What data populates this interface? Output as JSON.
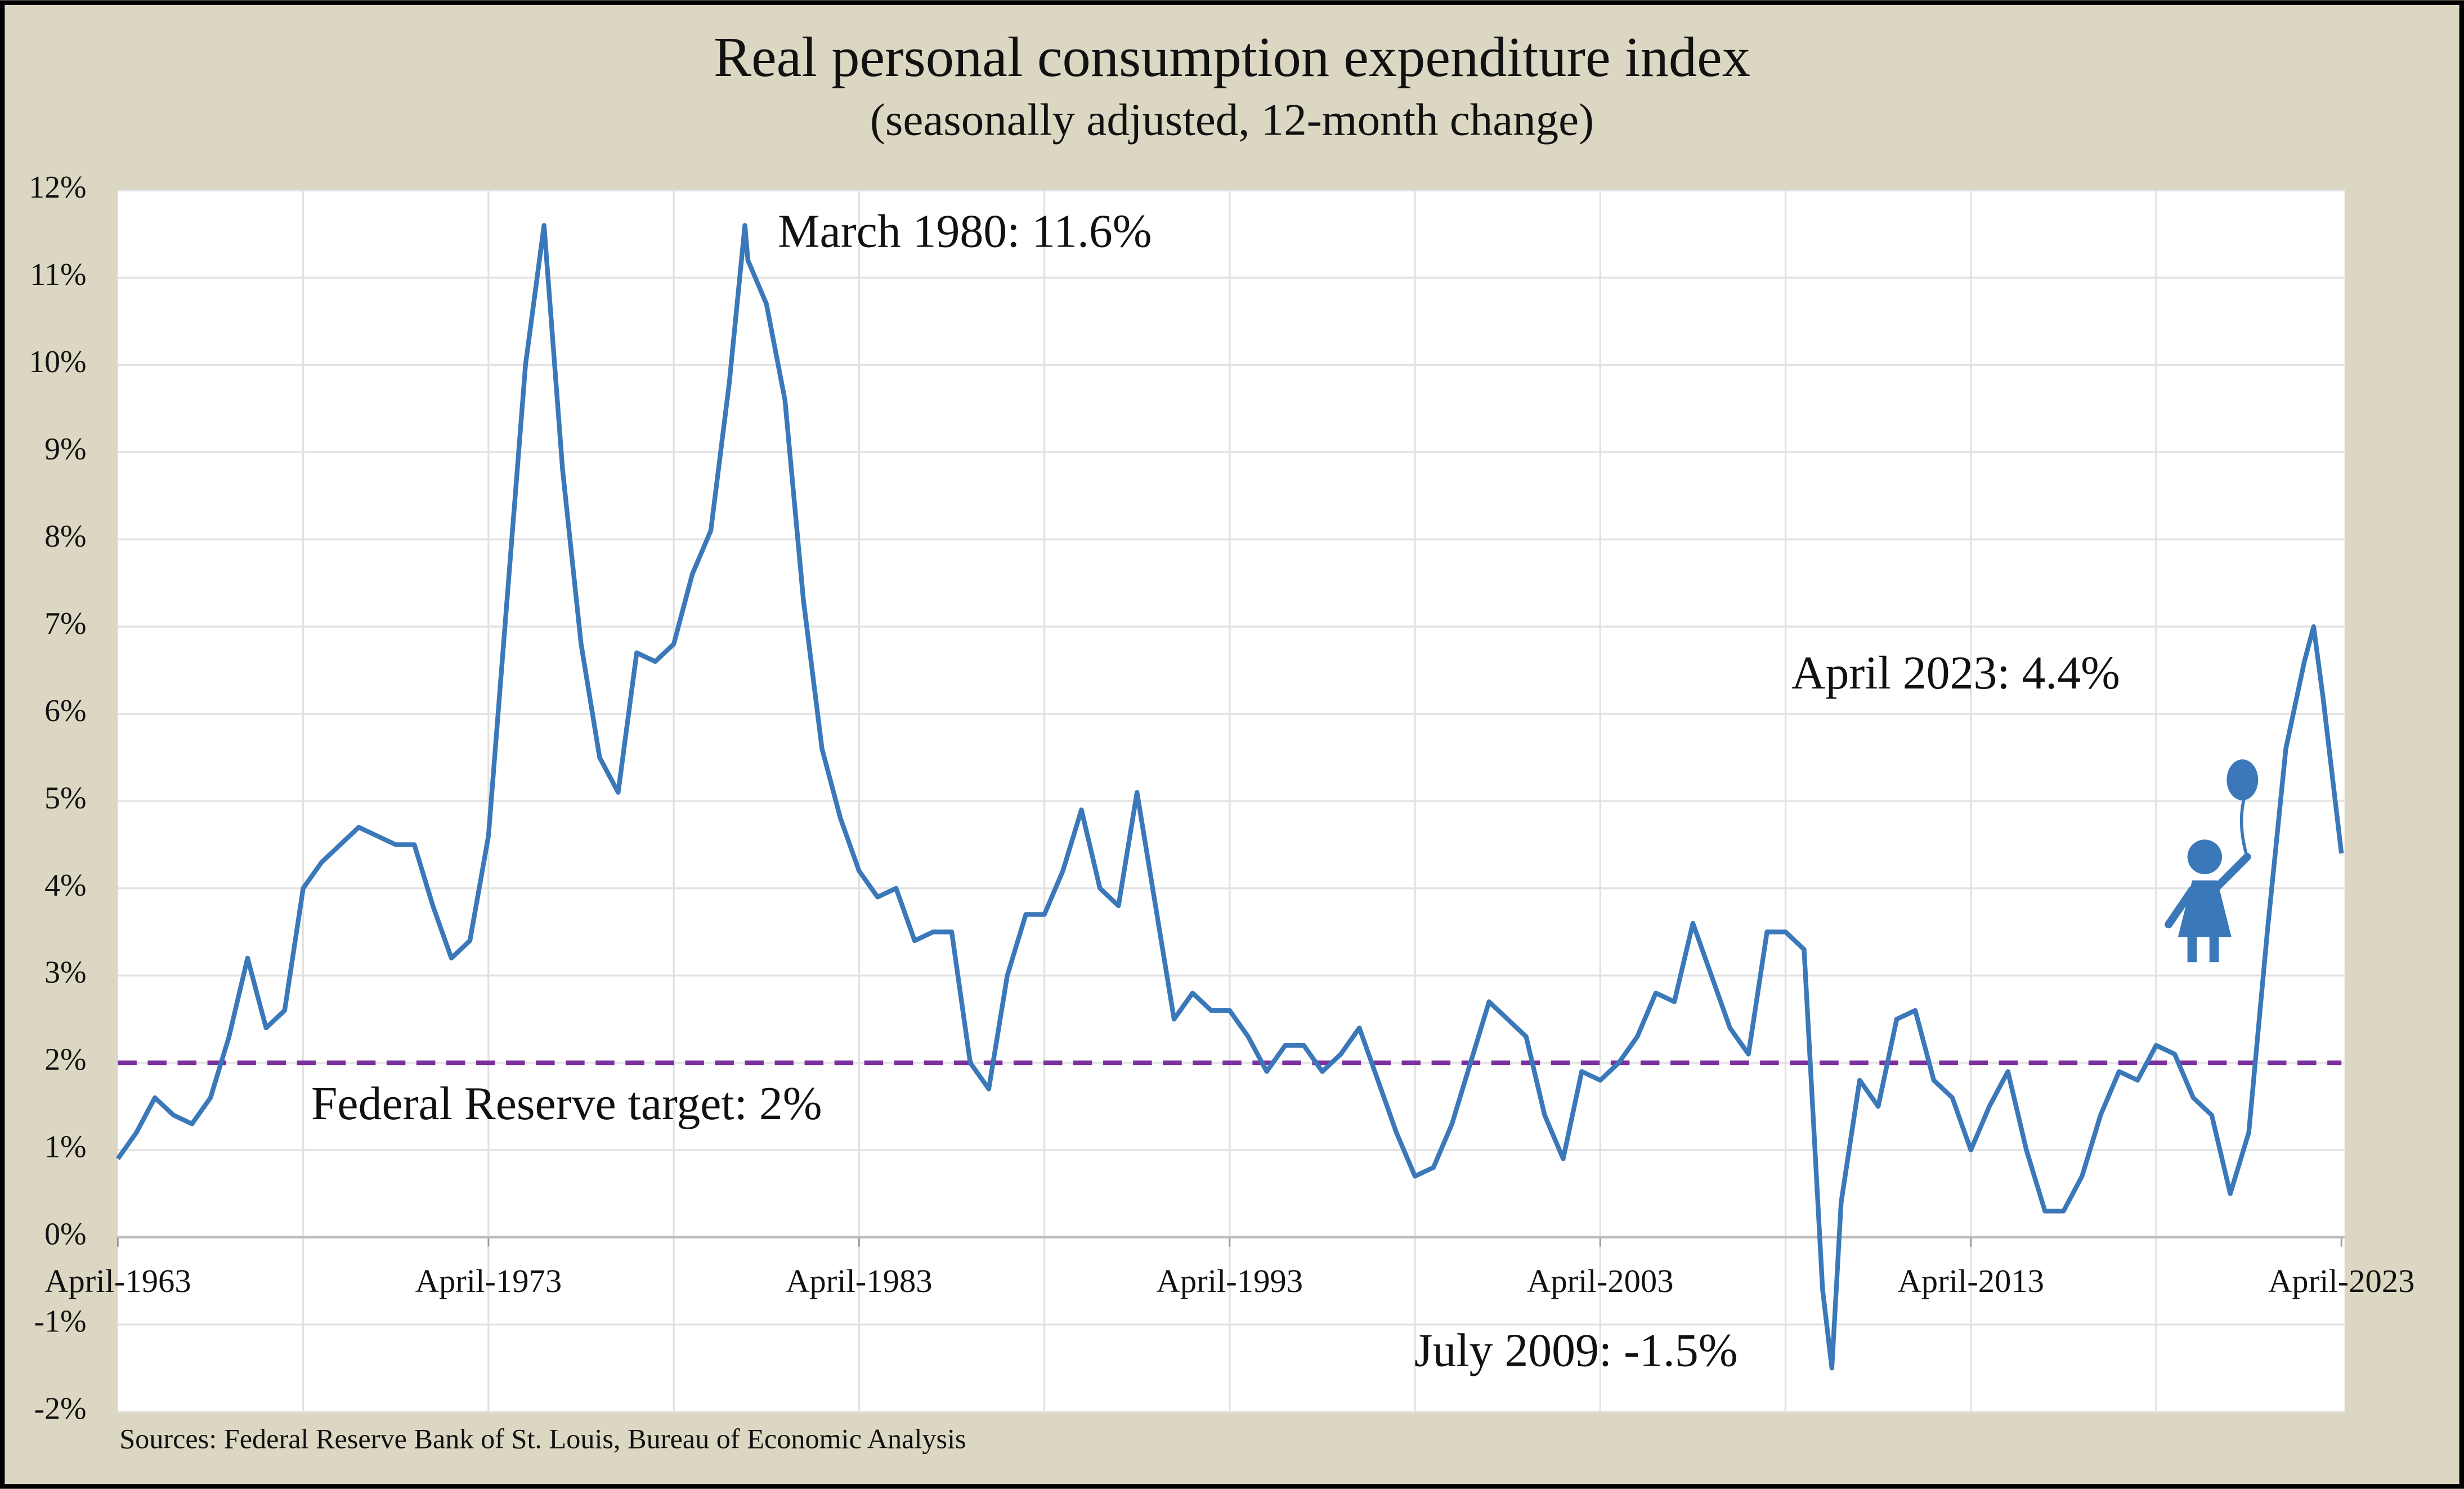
{
  "chart_data": {
    "type": "line",
    "title": "Real personal consumption expenditure index",
    "subtitle": "(seasonally adjusted, 12-month change)",
    "source": "Sources: Federal Reserve Bank of St. Louis, Bureau of Economic Analysis",
    "annotations": [
      "March 1980: 11.6%",
      "April 2023: 4.4%",
      "July 2009: -1.5%"
    ],
    "reference_line": {
      "value": 2,
      "label": "Federal Reserve target: 2%",
      "color": "#7b2fa0"
    },
    "color": "#3b78b9",
    "grid": true,
    "xlim": [
      1963.25,
      2023.25
    ],
    "ylim": [
      -2,
      12
    ],
    "xticks": [
      {
        "value": 1963.25,
        "label": "April-1963"
      },
      {
        "value": 1973.25,
        "label": "April-1973"
      },
      {
        "value": 1983.25,
        "label": "April-1983"
      },
      {
        "value": 1993.25,
        "label": "April-1993"
      },
      {
        "value": 2003.25,
        "label": "April-2003"
      },
      {
        "value": 2013.25,
        "label": "April-2013"
      },
      {
        "value": 2023.25,
        "label": "April-2023"
      }
    ],
    "yticks": [
      {
        "value": -2,
        "label": "-2%"
      },
      {
        "value": -1,
        "label": "-1%"
      },
      {
        "value": 0,
        "label": "0%"
      },
      {
        "value": 1,
        "label": "1%"
      },
      {
        "value": 2,
        "label": "2%"
      },
      {
        "value": 3,
        "label": "3%"
      },
      {
        "value": 4,
        "label": "4%"
      },
      {
        "value": 5,
        "label": "5%"
      },
      {
        "value": 6,
        "label": "6%"
      },
      {
        "value": 7,
        "label": "7%"
      },
      {
        "value": 8,
        "label": "8%"
      },
      {
        "value": 9,
        "label": "9%"
      },
      {
        "value": 10,
        "label": "10%"
      },
      {
        "value": 11,
        "label": "11%"
      },
      {
        "value": 12,
        "label": "12%"
      }
    ],
    "x": [
      1963.25,
      1963.75,
      1964.25,
      1964.75,
      1965.25,
      1965.75,
      1966.25,
      1966.75,
      1967.25,
      1967.75,
      1968.25,
      1968.75,
      1969.25,
      1969.75,
      1970.25,
      1970.75,
      1971.25,
      1971.75,
      1972.25,
      1972.75,
      1973.25,
      1973.75,
      1974.25,
      1974.75,
      1975.25,
      1975.75,
      1976.25,
      1976.75,
      1977.25,
      1977.75,
      1978.25,
      1978.75,
      1979.25,
      1979.75,
      1980.17,
      1980.25,
      1980.75,
      1981.25,
      1981.75,
      1982.25,
      1982.75,
      1983.25,
      1983.75,
      1984.25,
      1984.75,
      1985.25,
      1985.75,
      1986.25,
      1986.75,
      1987.25,
      1987.75,
      1988.25,
      1988.75,
      1989.25,
      1989.75,
      1990.25,
      1990.75,
      1991.25,
      1991.75,
      1992.25,
      1992.75,
      1993.25,
      1993.75,
      1994.25,
      1994.75,
      1995.25,
      1995.75,
      1996.25,
      1996.75,
      1997.25,
      1997.75,
      1998.25,
      1998.75,
      1999.25,
      1999.75,
      2000.25,
      2000.75,
      2001.25,
      2001.75,
      2002.25,
      2002.75,
      2003.25,
      2003.75,
      2004.25,
      2004.75,
      2005.25,
      2005.75,
      2006.25,
      2006.75,
      2007.25,
      2007.75,
      2008.25,
      2008.75,
      2009.25,
      2009.5,
      2009.75,
      2010.25,
      2010.75,
      2011.25,
      2011.75,
      2012.25,
      2012.75,
      2013.25,
      2013.75,
      2014.25,
      2014.75,
      2015.25,
      2015.75,
      2016.25,
      2016.75,
      2017.25,
      2017.75,
      2018.25,
      2018.75,
      2019.25,
      2019.75,
      2020.25,
      2020.75,
      2021.25,
      2021.75,
      2022.25,
      2022.5,
      2022.75,
      2023.25
    ],
    "values": [
      0.9,
      1.2,
      1.6,
      1.4,
      1.3,
      1.6,
      2.3,
      3.2,
      2.4,
      2.6,
      4.0,
      4.3,
      4.5,
      4.7,
      4.6,
      4.5,
      4.5,
      3.8,
      3.2,
      3.4,
      4.6,
      7.3,
      10.0,
      11.6,
      8.8,
      6.8,
      5.5,
      5.1,
      6.7,
      6.6,
      6.8,
      7.6,
      8.1,
      9.8,
      11.6,
      11.2,
      10.7,
      9.6,
      7.3,
      5.6,
      4.8,
      4.2,
      3.9,
      4.0,
      3.4,
      3.5,
      3.5,
      2.0,
      1.7,
      3.0,
      3.7,
      3.7,
      4.2,
      4.9,
      4.0,
      3.8,
      5.1,
      3.8,
      2.5,
      2.8,
      2.6,
      2.6,
      2.3,
      1.9,
      2.2,
      2.2,
      1.9,
      2.1,
      2.4,
      1.8,
      1.2,
      0.7,
      0.8,
      1.3,
      2.0,
      2.7,
      2.5,
      2.3,
      1.4,
      0.9,
      1.9,
      1.8,
      2.0,
      2.3,
      2.8,
      2.7,
      3.6,
      3.0,
      2.4,
      2.1,
      3.5,
      3.5,
      3.3,
      -0.6,
      -1.5,
      0.4,
      1.8,
      1.5,
      2.5,
      2.6,
      1.8,
      1.6,
      1.0,
      1.5,
      1.9,
      1.0,
      0.3,
      0.3,
      0.7,
      1.4,
      1.9,
      1.8,
      2.2,
      2.1,
      1.6,
      1.4,
      0.5,
      1.2,
      3.5,
      5.6,
      6.6,
      7.0,
      6.2,
      4.4
    ]
  }
}
